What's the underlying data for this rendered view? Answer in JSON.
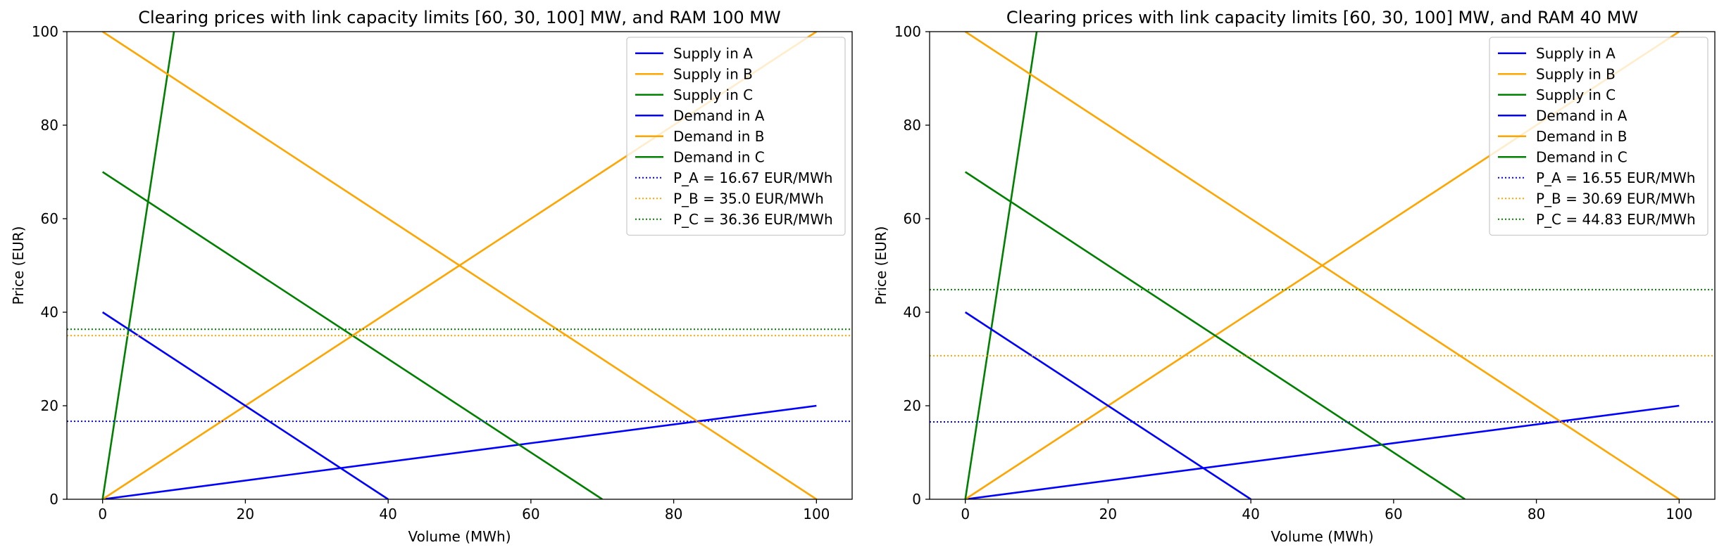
{
  "chart_data": [
    {
      "type": "line",
      "title": "Clearing prices with link capacity limits [60, 30, 100] MW, and RAM 100 MW",
      "xlabel": "Volume (MWh)",
      "ylabel": "Price (EUR)",
      "xlim": [
        -5,
        105
      ],
      "ylim": [
        0,
        100
      ],
      "xticks": [
        0,
        20,
        40,
        60,
        80,
        100
      ],
      "yticks": [
        0,
        20,
        40,
        60,
        80,
        100
      ],
      "grid": false,
      "legend_location": "upper right",
      "series": [
        {
          "name": "Supply in A",
          "color": "#0000ff",
          "style": "solid",
          "x": [
            0,
            100
          ],
          "y": [
            0,
            20
          ]
        },
        {
          "name": "Supply in B",
          "color": "#ffa500",
          "style": "solid",
          "x": [
            0,
            100
          ],
          "y": [
            0,
            100
          ]
        },
        {
          "name": "Supply in C",
          "color": "#008000",
          "style": "solid",
          "x": [
            0,
            10
          ],
          "y": [
            0,
            100
          ]
        },
        {
          "name": "Demand in A",
          "color": "#0000ff",
          "style": "solid",
          "x": [
            0,
            40
          ],
          "y": [
            40,
            0
          ]
        },
        {
          "name": "Demand in B",
          "color": "#ffa500",
          "style": "solid",
          "x": [
            0,
            100
          ],
          "y": [
            100,
            0
          ]
        },
        {
          "name": "Demand in C",
          "color": "#008000",
          "style": "solid",
          "x": [
            0,
            70
          ],
          "y": [
            70,
            0
          ]
        },
        {
          "name": "P_A = 16.67 EUR/MWh",
          "color": "#0000ff",
          "style": "dotted",
          "hline": 16.67
        },
        {
          "name": "P_B = 35.0 EUR/MWh",
          "color": "#ffa500",
          "style": "dotted",
          "hline": 35.0
        },
        {
          "name": "P_C = 36.36 EUR/MWh",
          "color": "#008000",
          "style": "dotted",
          "hline": 36.36
        }
      ]
    },
    {
      "type": "line",
      "title": "Clearing prices with link capacity limits [60, 30, 100] MW, and RAM 40 MW",
      "xlabel": "Volume (MWh)",
      "ylabel": "Price (EUR)",
      "xlim": [
        -5,
        105
      ],
      "ylim": [
        0,
        100
      ],
      "xticks": [
        0,
        20,
        40,
        60,
        80,
        100
      ],
      "yticks": [
        0,
        20,
        40,
        60,
        80,
        100
      ],
      "grid": false,
      "legend_location": "upper right",
      "series": [
        {
          "name": "Supply in A",
          "color": "#0000ff",
          "style": "solid",
          "x": [
            0,
            100
          ],
          "y": [
            0,
            20
          ]
        },
        {
          "name": "Supply in B",
          "color": "#ffa500",
          "style": "solid",
          "x": [
            0,
            100
          ],
          "y": [
            0,
            100
          ]
        },
        {
          "name": "Supply in C",
          "color": "#008000",
          "style": "solid",
          "x": [
            0,
            10
          ],
          "y": [
            0,
            100
          ]
        },
        {
          "name": "Demand in A",
          "color": "#0000ff",
          "style": "solid",
          "x": [
            0,
            40
          ],
          "y": [
            40,
            0
          ]
        },
        {
          "name": "Demand in B",
          "color": "#ffa500",
          "style": "solid",
          "x": [
            0,
            100
          ],
          "y": [
            100,
            0
          ]
        },
        {
          "name": "Demand in C",
          "color": "#008000",
          "style": "solid",
          "x": [
            0,
            70
          ],
          "y": [
            70,
            0
          ]
        },
        {
          "name": "P_A = 16.55 EUR/MWh",
          "color": "#0000ff",
          "style": "dotted",
          "hline": 16.55
        },
        {
          "name": "P_B = 30.69 EUR/MWh",
          "color": "#ffa500",
          "style": "dotted",
          "hline": 30.69
        },
        {
          "name": "P_C = 44.83 EUR/MWh",
          "color": "#008000",
          "style": "dotted",
          "hline": 44.83
        }
      ]
    }
  ]
}
